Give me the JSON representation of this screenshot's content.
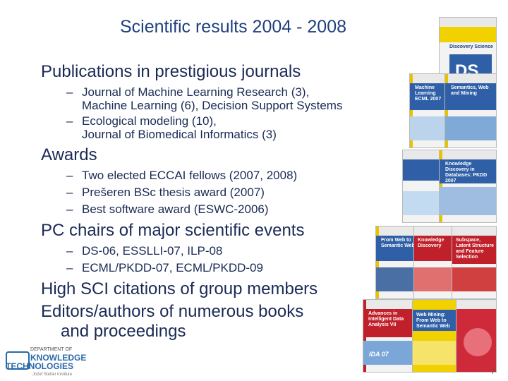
{
  "title": "Scientific results 2004 - 2008",
  "sections": [
    {
      "heading": "Publications in prestigious journals",
      "items": [
        "Journal of Machine Learning Research (3),",
        "Machine Learning (6), Decision Support Systems",
        "Ecological modeling (10),",
        "Journal of Biomedical Informatics (3)"
      ]
    },
    {
      "heading": "Awards",
      "items": [
        "Two elected ECCAI fellows (2007, 2008)",
        "Prešeren BSc thesis award (2007)",
        "Best software award (ESWC-2006)"
      ]
    },
    {
      "heading": "PC chairs of major scientific events",
      "items": [
        "DS-06, ESSLLI-07, ILP-08",
        "ECML/PKDD-07, ECML/PKDD-09"
      ]
    },
    {
      "heading": "High SCI citations of group members"
    },
    {
      "heading": "Editors/authors of numerous books",
      "heading_cont": "and proceedings"
    }
  ],
  "dash": "–",
  "books": {
    "b1": "Discovery Science",
    "b2": "Machine Learning ECML 2007",
    "b3": "Semantics, Web and Mining",
    "b4": "Knowledge Discovery in Databases: PKDD 2007",
    "b5": "From Web to Semantic Web",
    "b6": "Knowledge Discovery",
    "b7": "Subspace, Latent Structure and Feature Selection",
    "b8": "Advances in Intelligent Data Analysis VII",
    "b9": "IDA 07",
    "b10": "Web Mining: From Web to Semantic Web"
  },
  "logo": {
    "line1": "DEPARTMENT OF",
    "line2": "KNOWLEDGE",
    "line3": "TECHNOLOGIES",
    "line4": "Jožef Stefan Institute"
  },
  "page_number": "7",
  "colors": {
    "title": "#1f3f80",
    "text": "#1a2a55",
    "blue_cover": "#2f5fa6",
    "red_cover": "#c0202a",
    "yellow_cover": "#f1d200"
  }
}
